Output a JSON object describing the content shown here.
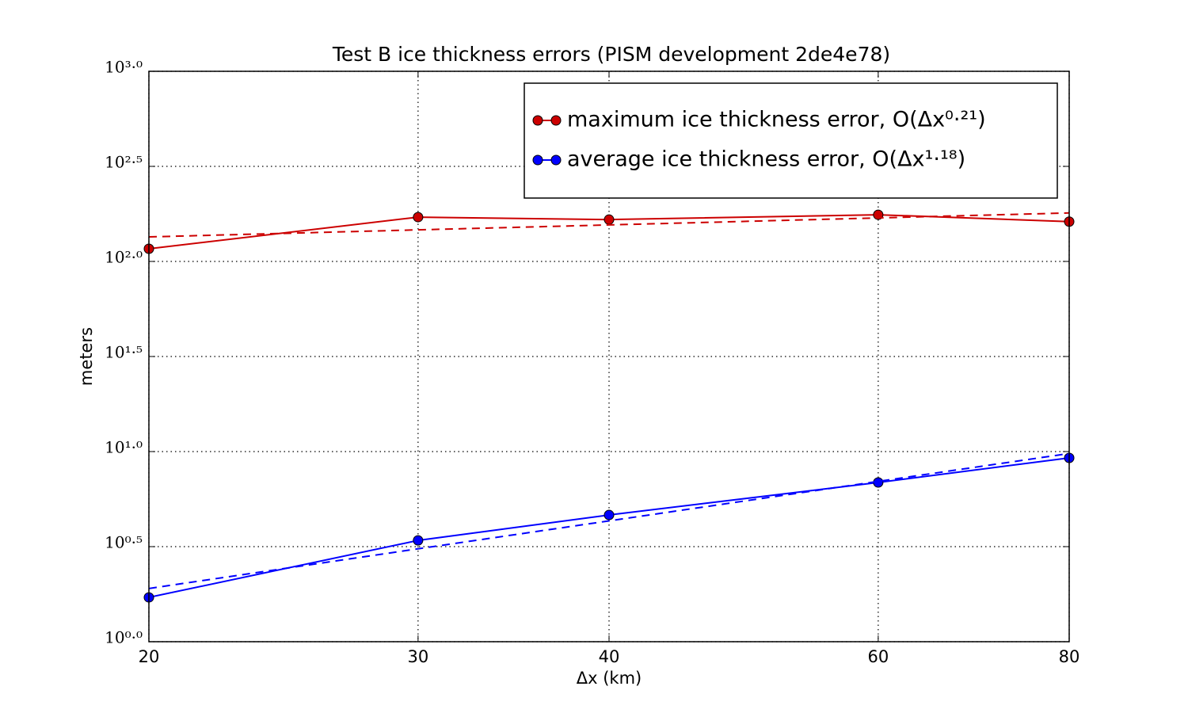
{
  "chart_data": {
    "type": "line",
    "title": "Test B ice thickness errors (PISM development 2de4e78)",
    "x_label": "Δx (km)",
    "y_label": "meters",
    "x": [
      20,
      30,
      40,
      60,
      80
    ],
    "series": [
      {
        "name": "maximum ice thickness error, O(Δx⁰·²¹)",
        "color": "#cc0000",
        "marker": true,
        "dashed": false,
        "values": [
          116.6,
          171,
          166,
          176,
          162
        ]
      },
      {
        "name": "average ice thickness error, O(Δx¹·¹⁸)",
        "color": "#0000ff",
        "marker": true,
        "dashed": false,
        "values": [
          1.71,
          3.41,
          4.64,
          6.88,
          9.26
        ]
      },
      {
        "color": "#cc0000",
        "marker": false,
        "dashed": true,
        "values": [
          134.6,
          146.6,
          155.6,
          169.4,
          179.9
        ]
      },
      {
        "color": "#0000ff",
        "marker": false,
        "dashed": true,
        "values": [
          1.905,
          3.08,
          4.32,
          6.97,
          9.77
        ]
      }
    ],
    "xlim": [
      20,
      80
    ],
    "ylim": [
      1,
      1000
    ],
    "xticks": [
      20,
      30,
      40,
      60,
      80
    ],
    "yticks": [
      {
        "value": 1,
        "label": "10⁰·⁰"
      },
      {
        "value": 3.1623,
        "label": "10⁰·⁵"
      },
      {
        "value": 10,
        "label": "10¹·⁰"
      },
      {
        "value": 31.623,
        "label": "10¹·⁵"
      },
      {
        "value": 100,
        "label": "10²·⁰"
      },
      {
        "value": 316.23,
        "label": "10²·⁵"
      },
      {
        "value": 1000,
        "label": "10³·⁰"
      }
    ],
    "x_log": true,
    "y_log": true,
    "grid": true,
    "legend": "upper right"
  }
}
